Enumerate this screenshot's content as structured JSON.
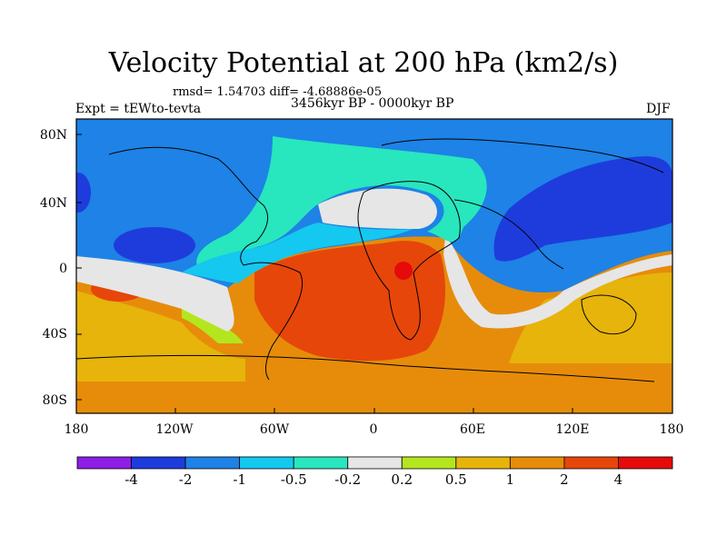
{
  "title": "Velocity Potential at 200 hPa (km2/s)",
  "stats": "rmsd= 1.54703 diff= -4.68886e-05",
  "experiment": "Expt = tEWto-tevta",
  "period": "3456kyr BP - 0000kyr BP",
  "season": "DJF",
  "lat_labels": [
    "80N",
    "40N",
    "0",
    "40S",
    "80S"
  ],
  "lon_labels": [
    "180",
    "120W",
    "60W",
    "0",
    "60E",
    "120E",
    "180"
  ],
  "colorbar": {
    "colors": [
      "#8c1ee6",
      "#1e3cdc",
      "#1e82e6",
      "#14c8f0",
      "#28e6be",
      "#e6e6e6",
      "#b4e61e",
      "#e6b40a",
      "#e68c0a",
      "#e6460a",
      "#e60a0a"
    ],
    "labels": [
      "-4",
      "-2",
      "-1",
      "-0.5",
      "-0.2",
      "0.2",
      "0.5",
      "1",
      "2",
      "4"
    ]
  },
  "legend": "Velocity Potential at 200 hPa (km2/s)"
}
